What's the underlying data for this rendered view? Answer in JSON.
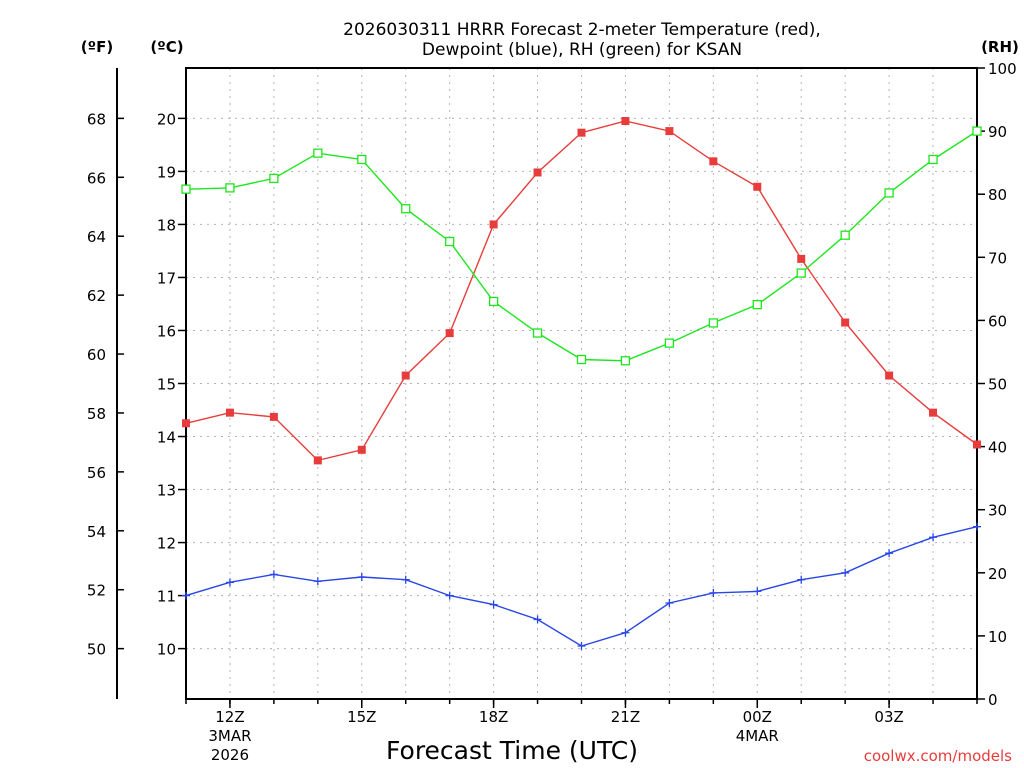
{
  "chart_data": {
    "type": "line",
    "title_line1": "2026030311 HRRR Forecast 2-meter Temperature (red),",
    "title_line2": "Dewpoint (blue), RH (green) for KSAN",
    "xlabel": "Forecast Time (UTC)",
    "credit": "coolwx.com/models",
    "unit_f": "(ºF)",
    "unit_c": "(ºC)",
    "unit_rh": "(RH)",
    "hours": [
      11,
      12,
      13,
      14,
      15,
      16,
      17,
      18,
      19,
      20,
      21,
      22,
      23,
      24,
      25,
      26,
      27,
      28,
      29
    ],
    "x_ticks": [
      {
        "hour": 12,
        "label": "12Z",
        "sub1": "3MAR",
        "sub2": "2026"
      },
      {
        "hour": 15,
        "label": "15Z",
        "sub1": "",
        "sub2": ""
      },
      {
        "hour": 18,
        "label": "18Z",
        "sub1": "",
        "sub2": ""
      },
      {
        "hour": 21,
        "label": "21Z",
        "sub1": "",
        "sub2": ""
      },
      {
        "hour": 24,
        "label": "00Z",
        "sub1": "4MAR",
        "sub2": ""
      },
      {
        "hour": 27,
        "label": "03Z",
        "sub1": "",
        "sub2": ""
      }
    ],
    "xlim": [
      11,
      29
    ],
    "ylim_c": [
      9.05,
      20.95
    ],
    "ylim_f": [
      48.29,
      69.71
    ],
    "ylim_rh": [
      0,
      100
    ],
    "yticks_c": [
      "10",
      "11",
      "12",
      "13",
      "14",
      "15",
      "16",
      "17",
      "18",
      "19",
      "20"
    ],
    "yticks_f": [
      "50",
      "52",
      "54",
      "56",
      "58",
      "60",
      "62",
      "64",
      "66",
      "68"
    ],
    "yticks_rh": [
      "0",
      "10",
      "20",
      "30",
      "40",
      "50",
      "60",
      "70",
      "80",
      "90",
      "100"
    ],
    "grid": true,
    "series": [
      {
        "name": "Temperature",
        "unit": "C",
        "color": "#e83c3c",
        "marker": "filled-square",
        "values": [
          14.25,
          14.45,
          14.37,
          13.55,
          13.75,
          15.15,
          15.95,
          18.0,
          18.98,
          19.73,
          19.95,
          19.76,
          19.19,
          18.71,
          17.35,
          16.15,
          15.15,
          14.45,
          13.85
        ]
      },
      {
        "name": "Dewpoint",
        "unit": "C",
        "color": "#2846e8",
        "marker": "plus",
        "values": [
          11.0,
          11.25,
          11.4,
          11.27,
          11.35,
          11.3,
          11.0,
          10.83,
          10.55,
          10.05,
          10.3,
          10.86,
          11.05,
          11.08,
          11.3,
          11.43,
          11.8,
          12.1,
          12.3
        ]
      },
      {
        "name": "RH",
        "unit": "%",
        "color": "#1ee61e",
        "marker": "open-square",
        "values": [
          80.8,
          81.0,
          82.5,
          86.5,
          85.5,
          77.7,
          72.5,
          63.0,
          58.0,
          53.8,
          53.6,
          56.4,
          59.6,
          62.5,
          67.5,
          73.5,
          80.2,
          85.5,
          90.0
        ]
      }
    ]
  }
}
